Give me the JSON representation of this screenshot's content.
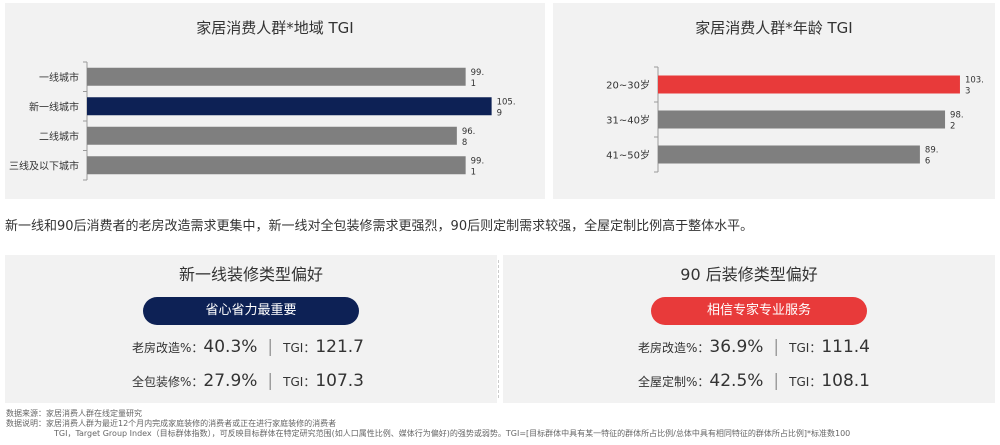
{
  "chart_data": [
    {
      "type": "bar",
      "orientation": "horizontal",
      "title": "家居消费人群*地域 TGI",
      "categories": [
        "一线城市",
        "新一线城市",
        "二线城市",
        "三线及以下城市"
      ],
      "values": [
        99.1,
        105.9,
        96.8,
        99.1
      ],
      "value_labels": [
        [
          "99.",
          "1"
        ],
        [
          "105.",
          "9"
        ],
        [
          "96.",
          "8"
        ],
        [
          "99.",
          "1"
        ]
      ],
      "highlight_index": 1,
      "colors": {
        "default": "#7f7f7f",
        "highlight": "#0d2155",
        "highlight_label": "#0d2155"
      },
      "xlim": [
        0,
        106
      ]
    },
    {
      "type": "bar",
      "orientation": "horizontal",
      "title": "家居消费人群*年龄 TGI",
      "categories": [
        "20~30岁",
        "31~40岁",
        "41~50岁"
      ],
      "values": [
        103.3,
        98.2,
        89.6
      ],
      "value_labels": [
        [
          "103.",
          "3"
        ],
        [
          "98.",
          "2"
        ],
        [
          "89.",
          "6"
        ]
      ],
      "highlight_index": 0,
      "colors": {
        "default": "#7f7f7f",
        "highlight": "#e83a3a",
        "highlight_label": "#e8941a"
      },
      "xlim": [
        0,
        104
      ]
    }
  ],
  "summary": "新一线和90后消费者的老房改造需求更集中，新一线对全包装修需求更强烈，90后则定制需求较强，全屋定制比例高于整体水平。",
  "cards": {
    "tier1": {
      "title": "新一线装修类型偏好",
      "pill": "省心省力最重要",
      "rows": [
        {
          "label": "老房改造%：",
          "pct": "40.3%",
          "tgi_label": "TGI：",
          "tgi": "121.7"
        },
        {
          "label": "全包装修%：",
          "pct": "27.9%",
          "tgi_label": "TGI：",
          "tgi": "107.3"
        }
      ]
    },
    "post90": {
      "title": "90 后装修类型偏好",
      "pill": "相信专家专业服务",
      "rows": [
        {
          "label": "老房改造%：",
          "pct": "36.9%",
          "tgi_label": "TGI：",
          "tgi": "111.4"
        },
        {
          "label": "全屋定制%：",
          "pct": "42.5%",
          "tgi_label": "TGI：",
          "tgi": "108.1"
        }
      ]
    }
  },
  "separator": "|",
  "notes": {
    "source": "数据来源：家居消费人群在线定量研究",
    "desc": "数据说明：家居消费人群为最近12个月内完成家庭装修的消费者或正在进行家庭装修的消费者",
    "tgi": "TGI，Target Group Index（目标群体指数），可反映目标群体在特定研究范围(如人口属性比例、媒体行为偏好)的强势或弱势。TGI=[目标群体中具有某一特征的群体所占比例/总体中具有相同特征的群体所占比例]*标准数100"
  }
}
